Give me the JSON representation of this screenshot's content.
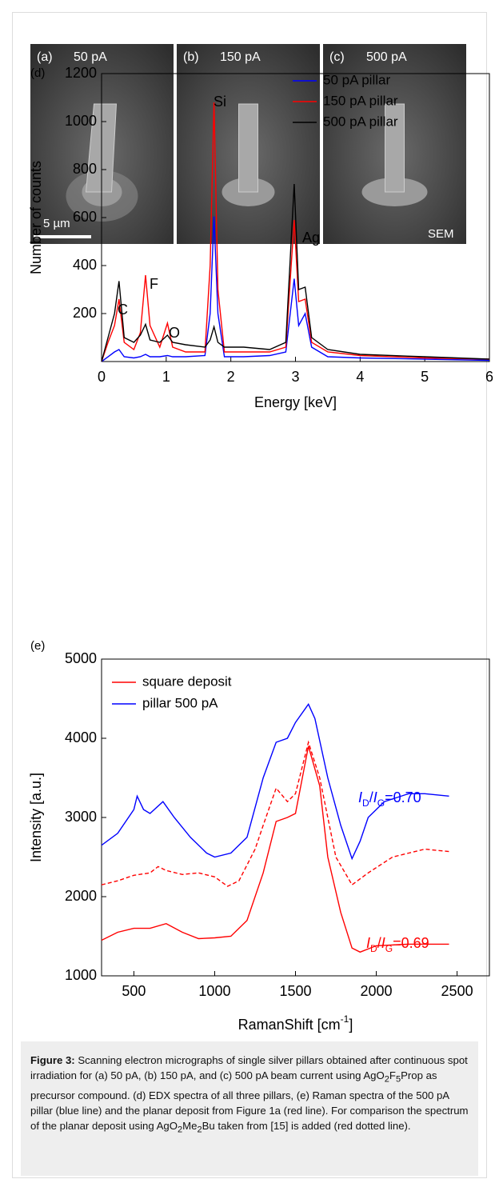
{
  "sem_panels": [
    {
      "label": "(a)",
      "current": "50 pA"
    },
    {
      "label": "(b)",
      "current": "150 pA"
    },
    {
      "label": "(c)",
      "current": "500 pA"
    }
  ],
  "scale_bar": "5 µm",
  "mode": "SEM",
  "chart_data": [
    {
      "type": "line",
      "panel": "(d)",
      "xlabel": "Energy [keV]",
      "ylabel": "Number of counts",
      "xlim": [
        0,
        6
      ],
      "xticks": [
        0,
        1,
        2,
        3,
        4,
        5,
        6
      ],
      "ylim": [
        0,
        1200
      ],
      "yticks": [
        200,
        400,
        600,
        800,
        1000,
        1200
      ],
      "x": [
        0,
        0.1,
        0.2,
        0.27,
        0.35,
        0.5,
        0.6,
        0.68,
        0.75,
        0.9,
        1.02,
        1.1,
        1.3,
        1.6,
        1.68,
        1.74,
        1.8,
        1.9,
        2.2,
        2.6,
        2.85,
        2.98,
        3.05,
        3.15,
        3.25,
        3.5,
        4,
        5,
        6
      ],
      "series": [
        {
          "name": "50 pA pillar",
          "color": "#0000ff",
          "values": [
            0,
            20,
            40,
            50,
            20,
            15,
            20,
            30,
            20,
            20,
            25,
            20,
            20,
            25,
            200,
            605,
            200,
            20,
            20,
            25,
            40,
            345,
            150,
            200,
            60,
            20,
            15,
            10,
            5
          ]
        },
        {
          "name": "150 pA pillar",
          "color": "#ff0000",
          "values": [
            0,
            80,
            150,
            260,
            80,
            50,
            120,
            360,
            150,
            60,
            160,
            60,
            40,
            40,
            400,
            1080,
            300,
            40,
            40,
            40,
            60,
            590,
            250,
            260,
            80,
            40,
            25,
            15,
            10
          ]
        },
        {
          "name": "500 pA pillar",
          "color": "#000000",
          "values": [
            0,
            100,
            200,
            335,
            100,
            80,
            110,
            155,
            90,
            80,
            110,
            80,
            70,
            60,
            90,
            145,
            80,
            60,
            60,
            50,
            80,
            740,
            300,
            310,
            100,
            50,
            30,
            20,
            10
          ]
        }
      ],
      "annotations": [
        "C",
        "F",
        "O",
        "Si",
        "Ag"
      ]
    },
    {
      "type": "line",
      "panel": "(e)",
      "xlabel": [
        "RamanShift [cm",
        "-1",
        "]"
      ],
      "ylabel": "Intensity [a.u.]",
      "xlim": [
        300,
        2700
      ],
      "xticks": [
        500,
        1000,
        1500,
        2000,
        2500
      ],
      "ylim": [
        1000,
        5000
      ],
      "yticks": [
        1000,
        2000,
        3000,
        4000,
        5000
      ],
      "series": [
        {
          "name": "square deposit",
          "color": "#ff0000",
          "x": [
            300,
            400,
            500,
            600,
            700,
            800,
            900,
            1000,
            1100,
            1200,
            1300,
            1380,
            1450,
            1500,
            1580,
            1650,
            1700,
            1780,
            1850,
            1900,
            2000,
            2200,
            2450
          ],
          "values": [
            1450,
            1550,
            1600,
            1600,
            1660,
            1550,
            1470,
            1480,
            1500,
            1700,
            2300,
            2950,
            3000,
            3050,
            3900,
            3400,
            2500,
            1800,
            1350,
            1300,
            1380,
            1400,
            1400
          ]
        },
        {
          "name": "pillar 500 pA",
          "color": "#0000ff",
          "x": [
            300,
            400,
            500,
            520,
            560,
            600,
            680,
            750,
            850,
            950,
            1000,
            1100,
            1200,
            1300,
            1380,
            1450,
            1500,
            1580,
            1620,
            1700,
            1780,
            1850,
            1900,
            1950,
            2050,
            2200,
            2300,
            2450
          ],
          "values": [
            2650,
            2800,
            3100,
            3270,
            3100,
            3050,
            3200,
            3000,
            2750,
            2550,
            2500,
            2550,
            2750,
            3500,
            3950,
            4000,
            4200,
            4430,
            4250,
            3500,
            2900,
            2480,
            2700,
            3000,
            3200,
            3300,
            3300,
            3270
          ]
        },
        {
          "color": "#ff0000",
          "dash": true,
          "x": [
            300,
            400,
            500,
            600,
            650,
            700,
            800,
            900,
            1000,
            1080,
            1150,
            1250,
            1300,
            1380,
            1450,
            1500,
            1580,
            1650,
            1750,
            1850,
            1950,
            2100,
            2300,
            2450
          ],
          "values": [
            2150,
            2200,
            2270,
            2300,
            2380,
            2330,
            2280,
            2300,
            2250,
            2130,
            2200,
            2600,
            2900,
            3370,
            3200,
            3300,
            3950,
            3500,
            2500,
            2150,
            2300,
            2500,
            2600,
            2570
          ]
        }
      ],
      "annotations": [
        {
          "color": "#0000ff",
          "parts": [
            "I",
            "D",
            "/",
            "I",
            "G",
            "=0.70"
          ]
        },
        {
          "color": "#ff0000",
          "parts": [
            "I",
            "D",
            "/",
            "I",
            "G",
            "=0.69"
          ]
        }
      ]
    }
  ],
  "caption": {
    "label": "Figure 3:",
    "parts": [
      "Scanning electron micrographs of single silver pillars obtained after continuous spot irradiation for (a) 50 pA, (b) 150 pA, and (c) 500 pA beam current using AgO",
      "2",
      "F",
      "5",
      "Prop as precursor compound. (d) EDX spectra of all three pillars, (e) Raman spectra of the 500 pA pillar (blue line) and the planar deposit from Figure 1a (red line). For comparison the spectrum of the planar deposit using AgO",
      "2",
      "Me",
      "2",
      "Bu taken from [15] is added (red dotted line)."
    ]
  }
}
